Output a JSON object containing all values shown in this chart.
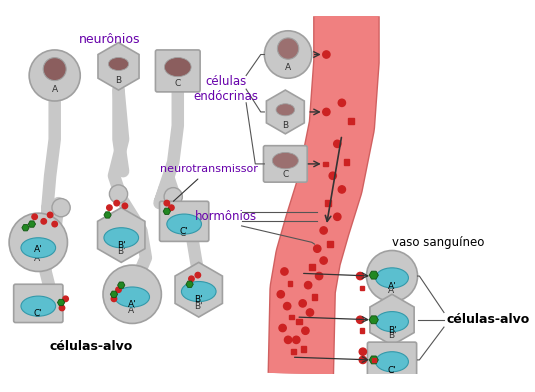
{
  "bg_color": "#ffffff",
  "gray_cell": "#c8c8c8",
  "gray_cell_border": "#a0a0a0",
  "nucleus_color": "#8B5E5E",
  "axon_color": "#c8c8c8",
  "cyan_organelle": "#5bbfcf",
  "red_dot": "#cc2222",
  "green_receptor": "#228822",
  "vessel_color": "#f08080",
  "vessel_border": "#d06060",
  "label_neuronios": "neurônios",
  "label_celulas_alvo_left": "células-alvo",
  "label_celulas_alvo_right": "células-alvo",
  "label_neurotransmissor": "neurotransmissor",
  "label_celulas_endocrinas": "células\nendócrinas",
  "label_hormonios": "hormônios",
  "label_vaso": "vaso sanguíneo",
  "label_color_purple": "#6600aa",
  "label_color_black": "#000000"
}
